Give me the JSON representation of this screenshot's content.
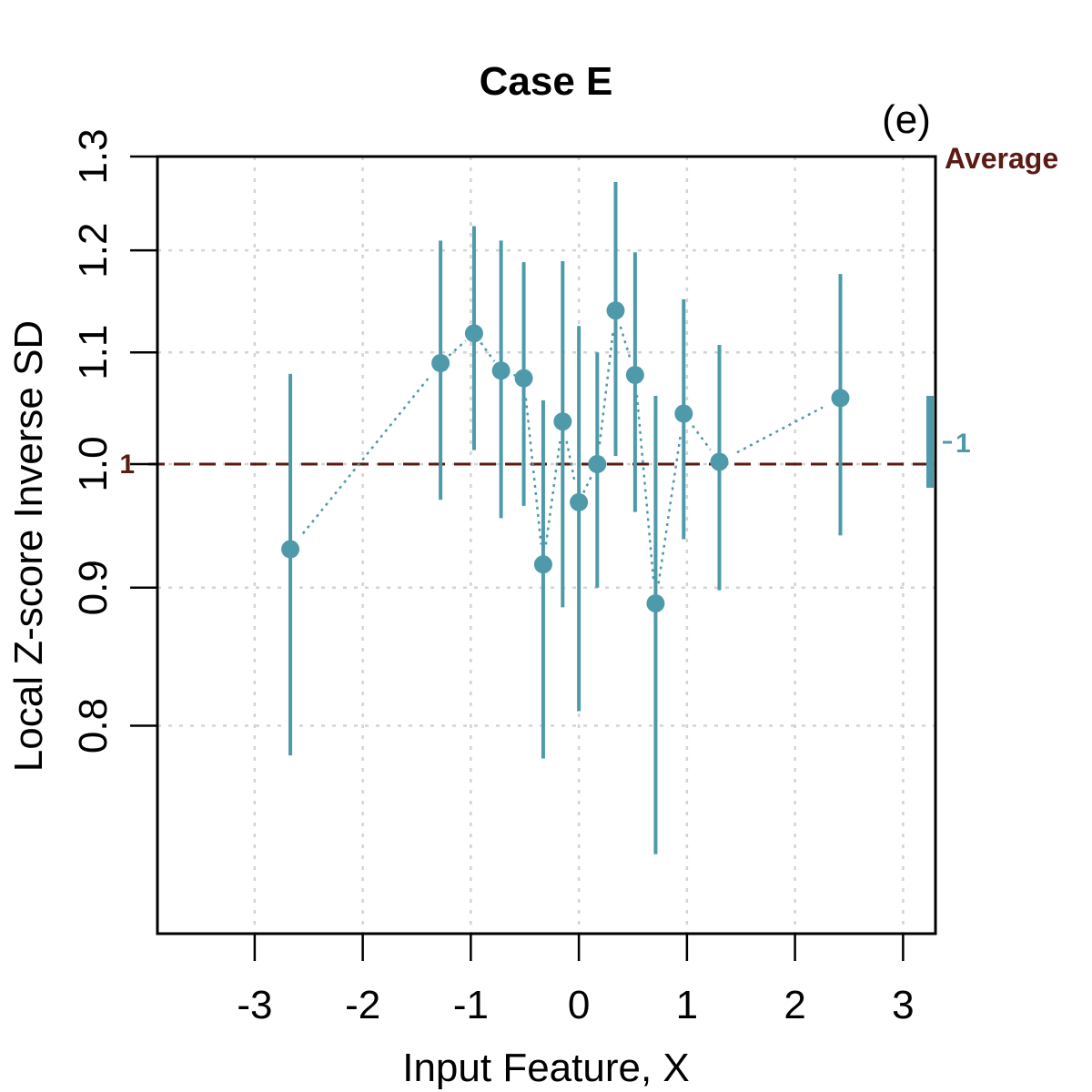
{
  "chart_data": {
    "type": "scatter",
    "title": "Case E",
    "panel_label": "(e)",
    "xlabel": "Input Feature, X",
    "ylabel": "Local Z-score Inverse SD",
    "xlim": [
      -3.9,
      3.3
    ],
    "ylim": [
      0.67,
      1.3
    ],
    "x_ticks": [
      -3,
      -2,
      -1,
      0,
      1,
      2,
      3
    ],
    "x_tick_labels": [
      "-3",
      "-2",
      "-1",
      "0",
      "1",
      "2",
      "3"
    ],
    "y_ticks": [
      0.8,
      0.9,
      1.0,
      1.1,
      1.2,
      1.3
    ],
    "y_tick_labels": [
      "0.8",
      "0.9",
      "1.0",
      "1.1",
      "1.2",
      "1.3"
    ],
    "log_y": true,
    "reference_line": {
      "y": 1.0,
      "label": "1",
      "color": "#5b1a12"
    },
    "average_label": "Average",
    "average_marker": {
      "label": "1",
      "low": 0.98,
      "high": 1.06,
      "color": "#4f9aaa"
    },
    "series": [
      {
        "name": "Local Z-score Inverse SD",
        "color": "#4f9aaa",
        "points": [
          {
            "x": -2.67,
            "y": 0.93,
            "low": 0.78,
            "high": 1.08
          },
          {
            "x": -1.28,
            "y": 1.09,
            "low": 0.97,
            "high": 1.21
          },
          {
            "x": -0.97,
            "y": 1.118,
            "low": 1.012,
            "high": 1.225
          },
          {
            "x": -0.72,
            "y": 1.083,
            "low": 0.955,
            "high": 1.21
          },
          {
            "x": -0.51,
            "y": 1.076,
            "low": 0.965,
            "high": 1.188
          },
          {
            "x": -0.33,
            "y": 0.918,
            "low": 0.778,
            "high": 1.056
          },
          {
            "x": -0.15,
            "y": 1.037,
            "low": 0.885,
            "high": 1.189
          },
          {
            "x": 0.0,
            "y": 0.968,
            "low": 0.81,
            "high": 1.125
          },
          {
            "x": 0.17,
            "y": 1.0,
            "low": 0.9,
            "high": 1.1
          },
          {
            "x": 0.34,
            "y": 1.14,
            "low": 1.007,
            "high": 1.272
          },
          {
            "x": 0.52,
            "y": 1.079,
            "low": 0.96,
            "high": 1.198
          },
          {
            "x": 0.71,
            "y": 0.888,
            "low": 0.717,
            "high": 1.06
          },
          {
            "x": 0.97,
            "y": 1.044,
            "low": 0.938,
            "high": 1.151
          },
          {
            "x": 1.3,
            "y": 1.002,
            "low": 0.898,
            "high": 1.107
          },
          {
            "x": 2.42,
            "y": 1.058,
            "low": 0.941,
            "high": 1.176
          }
        ]
      }
    ]
  }
}
